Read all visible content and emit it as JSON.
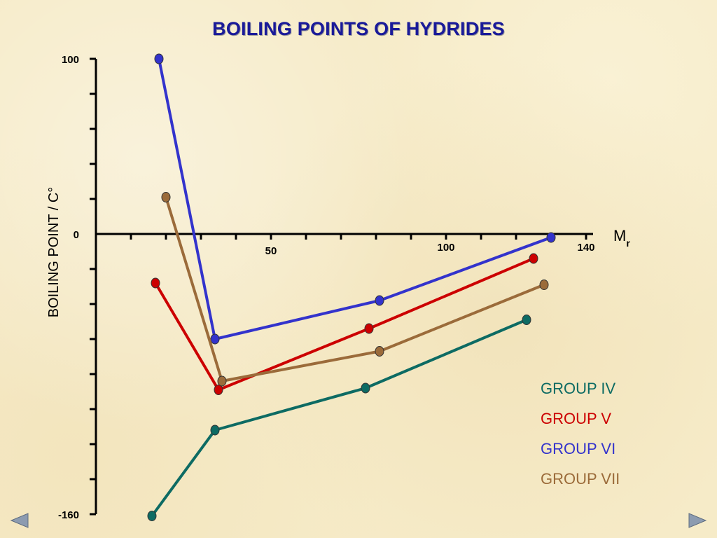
{
  "slide": {
    "title": "BOILING POINTS OF HYDRIDES"
  },
  "chart_data": {
    "type": "line",
    "title": "BOILING POINTS OF HYDRIDES",
    "xlabel": "M",
    "xlabel_subscript": "r",
    "ylabel": "BOILING POINT / C°",
    "xlim": [
      0,
      140
    ],
    "ylim": [
      -160,
      100
    ],
    "x_tick_labels": [
      {
        "value": 50,
        "label": "50"
      },
      {
        "value": 100,
        "label": "100"
      },
      {
        "value": 140,
        "label": "140"
      }
    ],
    "y_tick_labels": [
      {
        "value": 100,
        "label": "100"
      },
      {
        "value": 0,
        "label": "0"
      },
      {
        "value": -160,
        "label": "-160"
      }
    ],
    "x_minor_step": 10,
    "y_minor_step": 20,
    "series": [
      {
        "name": "GROUP IV",
        "color": "#0d6b63",
        "x": [
          16,
          34,
          77,
          123
        ],
        "y": [
          -161,
          -112,
          -88,
          -49
        ]
      },
      {
        "name": "GROUP V",
        "color": "#cc0000",
        "x": [
          17,
          35,
          78,
          125
        ],
        "y": [
          -28,
          -89,
          -54,
          -14
        ]
      },
      {
        "name": "GROUP VI",
        "color": "#3333cc",
        "x": [
          18,
          34,
          81,
          130
        ],
        "y": [
          100,
          -60,
          -38,
          -2
        ]
      },
      {
        "name": "GROUP VII",
        "color": "#9b6b3a",
        "x": [
          20,
          36,
          81,
          128
        ],
        "y": [
          21,
          -84,
          -67,
          -29
        ]
      }
    ]
  },
  "legend": {
    "items": [
      {
        "label": "GROUP IV",
        "color": "#0d6b63"
      },
      {
        "label": "GROUP V",
        "color": "#cc0000"
      },
      {
        "label": "GROUP VI",
        "color": "#3333cc"
      },
      {
        "label": "GROUP VII",
        "color": "#9b6b3a"
      }
    ]
  },
  "nav": {
    "prev_icon": "triangle-left-icon",
    "next_icon": "triangle-right-icon",
    "color": "#8c9bb0"
  }
}
